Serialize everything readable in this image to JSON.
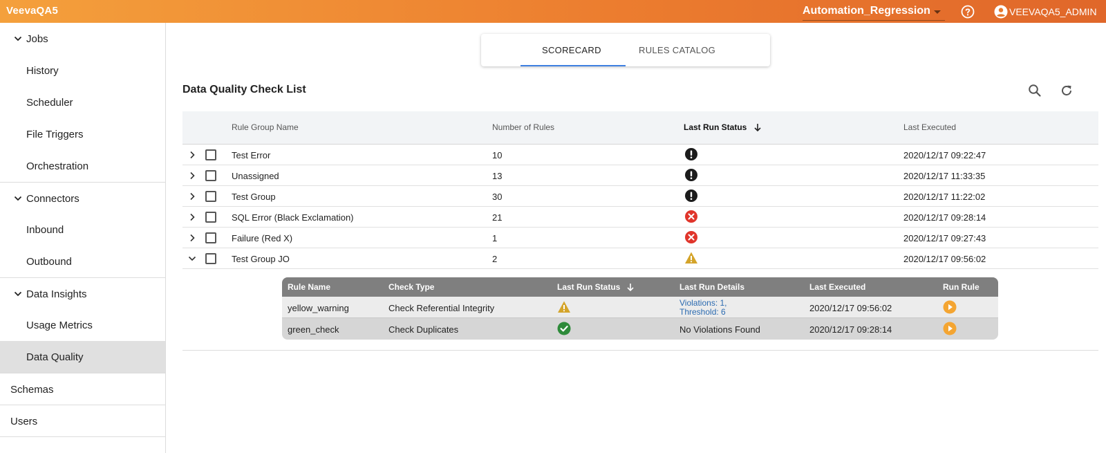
{
  "header": {
    "brand": "VeevaQA5",
    "workspace": "Automation_Regression",
    "user": "VEEVAQA5_ADMIN",
    "colors": {
      "gradient_start": "#f4a03c",
      "gradient_end": "#e0672a"
    }
  },
  "sidebar": {
    "jobs": {
      "label": "Jobs",
      "items": [
        "History",
        "Scheduler",
        "File Triggers",
        "Orchestration"
      ]
    },
    "connectors": {
      "label": "Connectors",
      "items": [
        "Inbound",
        "Outbound"
      ]
    },
    "data_insights": {
      "label": "Data Insights",
      "items": [
        "Usage Metrics",
        "Data Quality"
      ]
    },
    "schemas": "Schemas",
    "users": "Users",
    "active_item": "Data Quality"
  },
  "tabs": {
    "scorecard": "SCORECARD",
    "rules_catalog": "RULES CATALOG",
    "active": "SCORECARD"
  },
  "list": {
    "title": "Data Quality Check List",
    "columns": {
      "rule_group_name": "Rule Group Name",
      "number_of_rules": "Number of Rules",
      "last_run_status": "Last Run Status",
      "last_executed": "Last Executed"
    },
    "rows": [
      {
        "name": "Test Error",
        "rules": "10",
        "status": "error-exclamation",
        "executed": "2020/12/17 09:22:47"
      },
      {
        "name": "Unassigned",
        "rules": "13",
        "status": "error-exclamation",
        "executed": "2020/12/17 11:33:35"
      },
      {
        "name": "Test Group",
        "rules": "30",
        "status": "error-exclamation",
        "executed": "2020/12/17 11:22:02"
      },
      {
        "name": "SQL Error (Black Exclamation)",
        "rules": "21",
        "status": "failure-red-x",
        "executed": "2020/12/17 09:28:14"
      },
      {
        "name": "Failure (Red X)",
        "rules": "1",
        "status": "failure-red-x",
        "executed": "2020/12/17 09:27:43"
      },
      {
        "name": "Test Group JO",
        "rules": "2",
        "status": "warning-triangle",
        "executed": "2020/12/17 09:56:02"
      }
    ]
  },
  "rules": {
    "columns": {
      "rule_name": "Rule Name",
      "check_type": "Check Type",
      "last_run_status": "Last Run Status",
      "last_run_details": "Last Run Details",
      "last_executed": "Last Executed",
      "run_rule": "Run Rule"
    },
    "rows": [
      {
        "name": "yellow_warning",
        "check_type": "Check Referential Integrity",
        "status": "warning-triangle",
        "details_line1": "Violations: 1,",
        "details_line2": "Threshold: 6",
        "executed": "2020/12/17 09:56:02"
      },
      {
        "name": "green_check",
        "check_type": "Check Duplicates",
        "status": "success-check",
        "details": "No Violations Found",
        "executed": "2020/12/17 09:28:14"
      }
    ]
  }
}
